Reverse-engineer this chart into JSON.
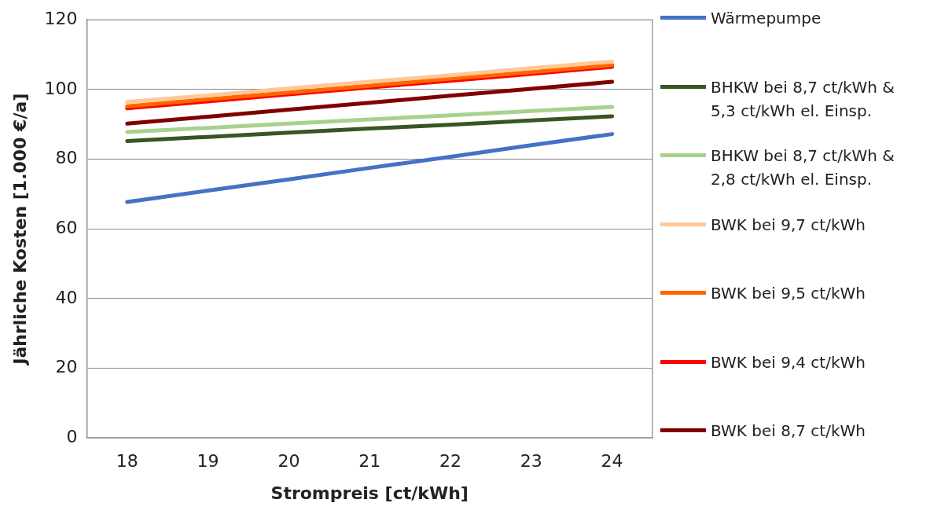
{
  "chart_data": {
    "type": "line",
    "xlabel": "Strompreis [ct/kWh]",
    "ylabel": "Jährliche Kosten [1.000 €/a]",
    "categories": [
      "18",
      "19",
      "20",
      "21",
      "22",
      "23",
      "24"
    ],
    "series": [
      {
        "name": "Wärmepumpe",
        "color": "#4472c4",
        "values": [
          67.7,
          71.0,
          74.2,
          77.5,
          80.7,
          84.0,
          87.2
        ]
      },
      {
        "name": "BHKW bei 8,7 ct/kWh & 5,3 ct/kWh el. Einsp.",
        "color": "#375623",
        "values": [
          85.2,
          86.4,
          87.6,
          88.8,
          89.9,
          91.1,
          92.3
        ]
      },
      {
        "name": "BHKW bei 8,7 ct/kWh & 2,8 ct/kWh el. Einsp.",
        "color": "#a9d18e",
        "values": [
          87.8,
          89.0,
          90.2,
          91.4,
          92.6,
          93.8,
          95.0
        ]
      },
      {
        "name": "BWK bei 9,7 ct/kWh",
        "color": "#ffc896",
        "values": [
          96.4,
          98.3,
          100.3,
          102.2,
          104.1,
          106.1,
          108.0
        ]
      },
      {
        "name": "BWK bei 9,5 ct/kWh",
        "color": "#ff6600",
        "values": [
          95.2,
          97.2,
          99.1,
          101.1,
          103.1,
          105.0,
          107.0
        ]
      },
      {
        "name": "BWK bei 9,4 ct/kWh",
        "color": "#ff0000",
        "values": [
          94.6,
          96.6,
          98.6,
          100.6,
          102.5,
          104.5,
          106.5
        ]
      },
      {
        "name": "BWK bei 8,7 ct/kWh",
        "color": "#800000",
        "values": [
          90.2,
          92.2,
          94.2,
          96.2,
          98.2,
          100.2,
          102.2
        ]
      }
    ],
    "ylim": [
      0,
      120
    ],
    "yticks": [
      0,
      20,
      40,
      60,
      80,
      100,
      120
    ],
    "grid": "y",
    "legend": "right",
    "marker": "none",
    "line_style": "solid"
  }
}
